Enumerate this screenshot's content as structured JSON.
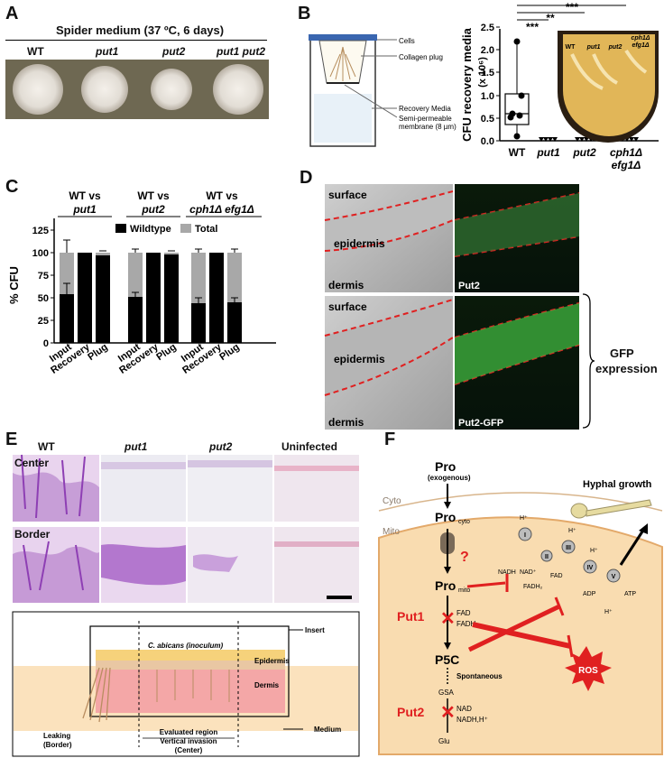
{
  "panels": {
    "A": "A",
    "B": "B",
    "C": "C",
    "D": "D",
    "E": "E",
    "F": "F"
  },
  "panelA": {
    "title": "Spider medium (37 ºC, 6 days)",
    "strains": [
      "WT",
      "put1",
      "put2",
      "put1 put2"
    ]
  },
  "panelB": {
    "diagram_labels": {
      "cells": "Cells",
      "plug": "Collagen plug",
      "recovery": "Recovery Media",
      "membrane_1": "Semi-permeable",
      "membrane_2": "membrane (8 µm)"
    },
    "ylabel_line1": "CFU recovery media",
    "ylabel_line2": "(x 10⁶)",
    "yticks": [
      "0.0",
      "0.5",
      "1.0",
      "1.5",
      "2.0",
      "2.5"
    ],
    "xticks": [
      "WT",
      "put1",
      "put2",
      "cph1Δ",
      "efg1Δ"
    ],
    "sig": [
      "***",
      "**",
      "***"
    ],
    "plate_labels": [
      "WT",
      "put1",
      "put2",
      "cph1Δ",
      "efg1Δ"
    ]
  },
  "panelC": {
    "groups": [
      {
        "line1": "WT vs",
        "line2": "put1"
      },
      {
        "line1": "WT vs",
        "line2": "put2"
      },
      {
        "line1": "WT vs",
        "line2": "cph1Δ efg1Δ"
      }
    ],
    "legend": {
      "wildtype": "Wildtype",
      "total": "Total"
    },
    "ylabel": "% CFU",
    "yticks": [
      "0",
      "25",
      "50",
      "75",
      "100",
      "125"
    ],
    "xcats": [
      "Input",
      "Recovery",
      "Plug"
    ]
  },
  "panelD": {
    "top_labels": [
      "surface",
      "epidermis",
      "dermis"
    ],
    "bottom_labels": [
      "surface",
      "epidermis",
      "dermis"
    ],
    "fluor_top": "Put2",
    "fluor_bottom": "Put2-GFP",
    "brace_line1": "GFP",
    "brace_line2": "expression"
  },
  "panelE": {
    "columns": [
      "WT",
      "put1",
      "put2",
      "Uninfected"
    ],
    "rows": [
      "Center",
      "Border"
    ],
    "schematic": {
      "insert": "Insert",
      "inoculum": "C. abicans (inoculum)",
      "epidermis": "Epidermis",
      "dermis": "Dermis",
      "medium": "Medium",
      "leaking1": "Leaking",
      "leaking2": "(Border)",
      "eval1": "Evaluated region",
      "eval2": "Vertical invasion",
      "eval3": "(Center)"
    }
  },
  "panelF": {
    "pro": "Pro",
    "exogenous": "(exogenous)",
    "pro_cyto": "Pro",
    "cyto_sub": "cyto",
    "cyto": "Cyto",
    "mito": "Mito",
    "hyphal": "Hyphal growth",
    "question": "?",
    "pro_mito": "Pro",
    "mito_sub": "mito",
    "put1": "Put1",
    "fad": "FAD",
    "fadh2": "FADH₂",
    "p5c": "P5C",
    "spontaneous": "Spontaneous",
    "gsa": "GSA",
    "put2": "Put2",
    "nad": "NAD",
    "nadh": "NADH,H⁺",
    "glu": "Glu",
    "ros": "ROS",
    "nadh_c": "NADH",
    "nadplus": "NAD⁺",
    "fadh2_c": "FADH₂",
    "fad_c": "FAD",
    "adp": "ADP",
    "atp": "ATP",
    "hplus": "H⁺",
    "complexes": [
      "I",
      "II",
      "III",
      "IV",
      "V"
    ]
  },
  "colors": {
    "red": "#e02020",
    "mito_fill": "#f9dcb0",
    "mito_edge": "#e3a96a",
    "cyto_edge": "#d8b58c",
    "green": "#37a837",
    "purple": "#8e3fb4"
  }
}
